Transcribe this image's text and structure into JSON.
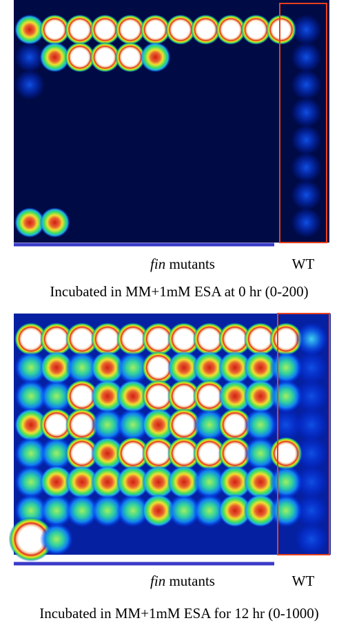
{
  "panels": [
    {
      "mutant_label_italic": "fin",
      "mutant_label": "mutants",
      "wt_label": "WT",
      "caption": "Incubated in MM+1mM ESA at 0 hr (0-200)"
    },
    {
      "mutant_label_italic": "fin",
      "mutant_label": "mutants",
      "wt_label": "WT",
      "caption": "Incubated in MM+1mM ESA for 12 hr (0-1000)"
    }
  ]
}
